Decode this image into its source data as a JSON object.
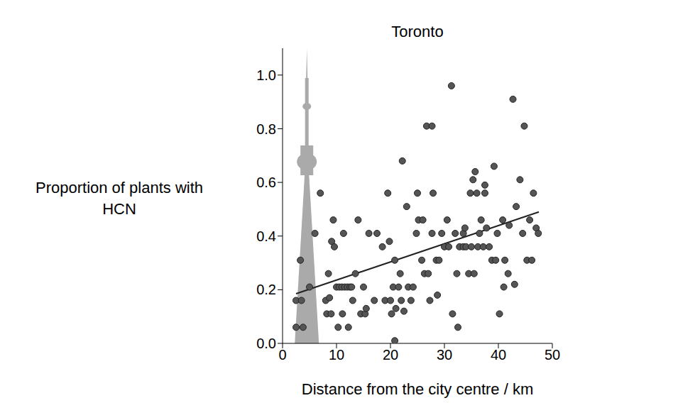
{
  "chart_data": {
    "type": "scatter",
    "title": "Toronto",
    "xlabel": "Distance from the city centre / km",
    "ylabel": "Proportion of plants with HCN",
    "xlim": [
      0,
      50
    ],
    "xticks": [
      0,
      10,
      20,
      30,
      40,
      50
    ],
    "ylim": [
      0,
      1.1
    ],
    "yticks": [
      {
        "value": 0,
        "label": "0.0"
      },
      0.2,
      0.4,
      0.6,
      0.8,
      {
        "value": 1,
        "label": "1.0"
      }
    ],
    "grid": false,
    "marker": "circle",
    "color": "#555555",
    "x": [
      2.5,
      2.5,
      3.3,
      3.5,
      3.8,
      5,
      6,
      7,
      8,
      8.2,
      8.5,
      8.7,
      9,
      9.1,
      9.4,
      9.6,
      10,
      10.3,
      10.5,
      11,
      11.1,
      11.3,
      11.5,
      12,
      12.2,
      12.5,
      12.8,
      13,
      13.5,
      14,
      14.5,
      15,
      15.3,
      15.5,
      16,
      17,
      17.5,
      18.5,
      19,
      19.5,
      19.8,
      20,
      20.2,
      20.5,
      20.8,
      20.8,
      21,
      21.5,
      21.8,
      22,
      22.2,
      22.5,
      23,
      23.3,
      23.8,
      24.2,
      24.8,
      25,
      25.2,
      25.8,
      26,
      26.3,
      26.7,
      27,
      27.3,
      27.7,
      27.7,
      27.9,
      28.5,
      28.7,
      29,
      29.5,
      30,
      30.5,
      30.8,
      31.3,
      31.5,
      32,
      32.3,
      32.5,
      32.8,
      33.5,
      33.5,
      33.8,
      34,
      34.5,
      34.8,
      35,
      35.3,
      35.5,
      35.7,
      36,
      36.2,
      36.5,
      36.8,
      37.2,
      37.5,
      37.5,
      37.8,
      38.3,
      38.8,
      39.2,
      39.5,
      39.8,
      40.2,
      40.8,
      41,
      41.2,
      41.8,
      42,
      42.7,
      43,
      43.3,
      44,
      44.5,
      44.8,
      45.3,
      45.8,
      46.2,
      46.5,
      47,
      47.4
    ],
    "values": [
      0.06,
      0.16,
      0.31,
      0.16,
      0.06,
      0.21,
      0.41,
      0.56,
      0.16,
      0.11,
      0.26,
      0.17,
      0.11,
      0.38,
      0.46,
      0.36,
      0.21,
      0.06,
      0.21,
      0.21,
      0.11,
      0.41,
      0.21,
      0.21,
      0.06,
      0.21,
      0.21,
      0.16,
      0.26,
      0.46,
      0.11,
      0.21,
      0.11,
      0.13,
      0.41,
      0.16,
      0.41,
      0.36,
      0.16,
      0.56,
      0.38,
      0.16,
      0.11,
      0.21,
      0.31,
      0.01,
      0.13,
      0.21,
      0.26,
      0.16,
      0.68,
      0.12,
      0.51,
      0.21,
      0.16,
      0.21,
      0.41,
      0.56,
      0.46,
      0.31,
      0.46,
      0.26,
      0.81,
      0.26,
      0.16,
      0.41,
      0.81,
      0.56,
      0.31,
      0.18,
      0.31,
      0.41,
      0.36,
      0.46,
      0.36,
      0.96,
      0.11,
      0.41,
      0.26,
      0.06,
      0.36,
      0.36,
      0.41,
      0.43,
      0.36,
      0.26,
      0.56,
      0.36,
      0.61,
      0.26,
      0.64,
      0.56,
      0.36,
      0.41,
      0.46,
      0.36,
      0.59,
      0.56,
      0.43,
      0.36,
      0.31,
      0.66,
      0.31,
      0.41,
      0.11,
      0.46,
      0.21,
      0.31,
      0.26,
      0.44,
      0.91,
      0.22,
      0.51,
      0.61,
      0.41,
      0.81,
      0.31,
      0.46,
      0.31,
      0.56,
      0.43,
      0.41
    ],
    "trend_line": {
      "x": [
        2.5,
        47.5
      ],
      "y": [
        0.185,
        0.49
      ],
      "color": "#222222"
    }
  }
}
